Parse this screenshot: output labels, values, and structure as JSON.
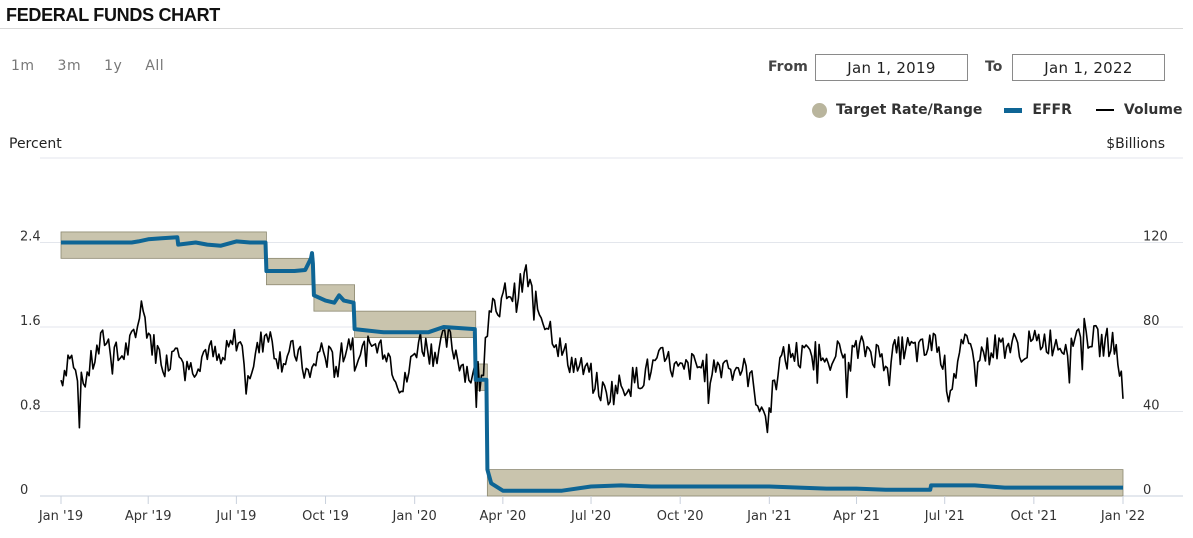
{
  "header": {
    "title": "FEDERAL FUNDS CHART"
  },
  "range_buttons": [
    "1m",
    "3m",
    "1y",
    "All"
  ],
  "date_range": {
    "from_label": "From",
    "from_value": "Jan 1, 2019",
    "to_label": "To",
    "to_value": "Jan 1, 2022"
  },
  "colors": {
    "target": "#c9c4ad",
    "target_edge": "#8c8870",
    "effr": "#0e6595",
    "volume": "#000000"
  },
  "chart_data": {
    "type": "line",
    "legend": [
      "Target Rate/Range",
      "EFFR",
      "Volume"
    ],
    "legend_placement": "top-right",
    "left_axis_title": "Percent",
    "right_axis_title": "$Billions",
    "ylim_left": [
      0,
      3.2
    ],
    "ylim_right": [
      0,
      160
    ],
    "y_ticks_left": [
      "0",
      "0.8",
      "1.6",
      "2.4"
    ],
    "y_ticks_right": [
      "0",
      "40",
      "80",
      "120"
    ],
    "x_range": [
      "2019-01-01",
      "2022-01-01"
    ],
    "x_ticks": [
      "Jan '19",
      "Apr '19",
      "Jul '19",
      "Oct '19",
      "Jan '20",
      "Apr '20",
      "Jul '20",
      "Oct '20",
      "Jan '21",
      "Apr '21",
      "Jul '21",
      "Oct '21",
      "Jan '22"
    ],
    "x_tick_dates": [
      "2019-01-01",
      "2019-04-01",
      "2019-07-01",
      "2019-10-01",
      "2020-01-01",
      "2020-04-01",
      "2020-07-01",
      "2020-10-01",
      "2021-01-01",
      "2021-04-01",
      "2021-07-01",
      "2021-10-01",
      "2022-01-01"
    ],
    "grid": "horizontal",
    "target_range": [
      {
        "start": "2019-01-01",
        "end": "2019-08-01",
        "lower": 2.25,
        "upper": 2.5
      },
      {
        "start": "2019-08-01",
        "end": "2019-09-19",
        "lower": 2.0,
        "upper": 2.25
      },
      {
        "start": "2019-09-19",
        "end": "2019-10-31",
        "lower": 1.75,
        "upper": 2.0
      },
      {
        "start": "2019-10-31",
        "end": "2020-03-04",
        "lower": 1.5,
        "upper": 1.75
      },
      {
        "start": "2020-03-04",
        "end": "2020-03-16",
        "lower": 1.0,
        "upper": 1.25
      },
      {
        "start": "2020-03-16",
        "end": "2022-01-01",
        "lower": 0.0,
        "upper": 0.25
      }
    ],
    "effr": [
      {
        "x": "2019-01-01",
        "y": 2.4
      },
      {
        "x": "2019-03-15",
        "y": 2.4
      },
      {
        "x": "2019-03-22",
        "y": 2.41
      },
      {
        "x": "2019-04-01",
        "y": 2.43
      },
      {
        "x": "2019-04-15",
        "y": 2.44
      },
      {
        "x": "2019-05-01",
        "y": 2.45
      },
      {
        "x": "2019-05-02",
        "y": 2.38
      },
      {
        "x": "2019-05-20",
        "y": 2.4
      },
      {
        "x": "2019-06-01",
        "y": 2.38
      },
      {
        "x": "2019-06-15",
        "y": 2.37
      },
      {
        "x": "2019-07-01",
        "y": 2.41
      },
      {
        "x": "2019-07-15",
        "y": 2.4
      },
      {
        "x": "2019-07-31",
        "y": 2.4
      },
      {
        "x": "2019-08-01",
        "y": 2.13
      },
      {
        "x": "2019-08-30",
        "y": 2.13
      },
      {
        "x": "2019-09-10",
        "y": 2.14
      },
      {
        "x": "2019-09-16",
        "y": 2.25
      },
      {
        "x": "2019-09-17",
        "y": 2.3
      },
      {
        "x": "2019-09-18",
        "y": 2.2
      },
      {
        "x": "2019-09-19",
        "y": 1.9
      },
      {
        "x": "2019-10-01",
        "y": 1.85
      },
      {
        "x": "2019-10-10",
        "y": 1.83
      },
      {
        "x": "2019-10-15",
        "y": 1.9
      },
      {
        "x": "2019-10-20",
        "y": 1.85
      },
      {
        "x": "2019-10-30",
        "y": 1.83
      },
      {
        "x": "2019-10-31",
        "y": 1.58
      },
      {
        "x": "2019-11-30",
        "y": 1.55
      },
      {
        "x": "2019-12-31",
        "y": 1.55
      },
      {
        "x": "2020-01-15",
        "y": 1.55
      },
      {
        "x": "2020-01-31",
        "y": 1.6
      },
      {
        "x": "2020-03-03",
        "y": 1.58
      },
      {
        "x": "2020-03-04",
        "y": 1.1
      },
      {
        "x": "2020-03-15",
        "y": 1.1
      },
      {
        "x": "2020-03-16",
        "y": 0.25
      },
      {
        "x": "2020-03-20",
        "y": 0.12
      },
      {
        "x": "2020-04-01",
        "y": 0.05
      },
      {
        "x": "2020-05-01",
        "y": 0.05
      },
      {
        "x": "2020-06-01",
        "y": 0.05
      },
      {
        "x": "2020-07-01",
        "y": 0.09
      },
      {
        "x": "2020-08-01",
        "y": 0.1
      },
      {
        "x": "2020-09-01",
        "y": 0.09
      },
      {
        "x": "2020-10-01",
        "y": 0.09
      },
      {
        "x": "2020-11-01",
        "y": 0.09
      },
      {
        "x": "2020-12-01",
        "y": 0.09
      },
      {
        "x": "2021-01-01",
        "y": 0.09
      },
      {
        "x": "2021-02-01",
        "y": 0.08
      },
      {
        "x": "2021-03-01",
        "y": 0.07
      },
      {
        "x": "2021-04-01",
        "y": 0.07
      },
      {
        "x": "2021-05-01",
        "y": 0.06
      },
      {
        "x": "2021-06-16",
        "y": 0.06
      },
      {
        "x": "2021-06-17",
        "y": 0.1
      },
      {
        "x": "2021-08-01",
        "y": 0.1
      },
      {
        "x": "2021-09-01",
        "y": 0.08
      },
      {
        "x": "2021-10-01",
        "y": 0.08
      },
      {
        "x": "2021-11-01",
        "y": 0.08
      },
      {
        "x": "2022-01-01",
        "y": 0.08
      }
    ],
    "volume": [
      {
        "x": "2019-01-01",
        "y": 55
      },
      {
        "x": "2019-01-10",
        "y": 68
      },
      {
        "x": "2019-01-20",
        "y": 50
      },
      {
        "x": "2019-02-01",
        "y": 62
      },
      {
        "x": "2019-02-15",
        "y": 75
      },
      {
        "x": "2019-03-01",
        "y": 65
      },
      {
        "x": "2019-03-15",
        "y": 72
      },
      {
        "x": "2019-03-25",
        "y": 89
      },
      {
        "x": "2019-04-05",
        "y": 72
      },
      {
        "x": "2019-04-20",
        "y": 62
      },
      {
        "x": "2019-05-01",
        "y": 75
      },
      {
        "x": "2019-05-15",
        "y": 60
      },
      {
        "x": "2019-06-01",
        "y": 70
      },
      {
        "x": "2019-06-15",
        "y": 62
      },
      {
        "x": "2019-07-01",
        "y": 75
      },
      {
        "x": "2019-07-15",
        "y": 60
      },
      {
        "x": "2019-08-01",
        "y": 78
      },
      {
        "x": "2019-08-15",
        "y": 65
      },
      {
        "x": "2019-09-01",
        "y": 68
      },
      {
        "x": "2019-09-15",
        "y": 55
      },
      {
        "x": "2019-09-25",
        "y": 70
      },
      {
        "x": "2019-10-10",
        "y": 62
      },
      {
        "x": "2019-10-25",
        "y": 74
      },
      {
        "x": "2019-11-10",
        "y": 68
      },
      {
        "x": "2019-12-01",
        "y": 72
      },
      {
        "x": "2019-12-20",
        "y": 50
      },
      {
        "x": "2020-01-05",
        "y": 74
      },
      {
        "x": "2020-01-20",
        "y": 68
      },
      {
        "x": "2020-02-05",
        "y": 74
      },
      {
        "x": "2020-02-20",
        "y": 62
      },
      {
        "x": "2020-03-01",
        "y": 56
      },
      {
        "x": "2020-03-10",
        "y": 60
      },
      {
        "x": "2020-03-20",
        "y": 95
      },
      {
        "x": "2020-03-25",
        "y": 82
      },
      {
        "x": "2020-04-05",
        "y": 98
      },
      {
        "x": "2020-04-15",
        "y": 94
      },
      {
        "x": "2020-04-25",
        "y": 105
      },
      {
        "x": "2020-05-05",
        "y": 90
      },
      {
        "x": "2020-05-20",
        "y": 80
      },
      {
        "x": "2020-06-01",
        "y": 68
      },
      {
        "x": "2020-06-15",
        "y": 62
      },
      {
        "x": "2020-07-01",
        "y": 56
      },
      {
        "x": "2020-07-15",
        "y": 48
      },
      {
        "x": "2020-08-01",
        "y": 52
      },
      {
        "x": "2020-08-15",
        "y": 55
      },
      {
        "x": "2020-09-01",
        "y": 60
      },
      {
        "x": "2020-09-15",
        "y": 65
      },
      {
        "x": "2020-10-01",
        "y": 58
      },
      {
        "x": "2020-10-15",
        "y": 62
      },
      {
        "x": "2020-11-01",
        "y": 60
      },
      {
        "x": "2020-11-20",
        "y": 64
      },
      {
        "x": "2020-12-10",
        "y": 58
      },
      {
        "x": "2020-12-30",
        "y": 35
      },
      {
        "x": "2021-01-10",
        "y": 62
      },
      {
        "x": "2021-01-25",
        "y": 68
      },
      {
        "x": "2021-02-10",
        "y": 65
      },
      {
        "x": "2021-03-01",
        "y": 70
      },
      {
        "x": "2021-03-20",
        "y": 66
      },
      {
        "x": "2021-04-10",
        "y": 70
      },
      {
        "x": "2021-05-01",
        "y": 65
      },
      {
        "x": "2021-05-20",
        "y": 70
      },
      {
        "x": "2021-06-10",
        "y": 68
      },
      {
        "x": "2021-06-25",
        "y": 75
      },
      {
        "x": "2021-07-05",
        "y": 50
      },
      {
        "x": "2021-07-20",
        "y": 70
      },
      {
        "x": "2021-08-10",
        "y": 68
      },
      {
        "x": "2021-09-01",
        "y": 72
      },
      {
        "x": "2021-09-20",
        "y": 70
      },
      {
        "x": "2021-10-10",
        "y": 74
      },
      {
        "x": "2021-11-01",
        "y": 72
      },
      {
        "x": "2021-11-20",
        "y": 78
      },
      {
        "x": "2021-12-10",
        "y": 72
      },
      {
        "x": "2021-12-25",
        "y": 74
      },
      {
        "x": "2022-01-01",
        "y": 46
      }
    ]
  }
}
